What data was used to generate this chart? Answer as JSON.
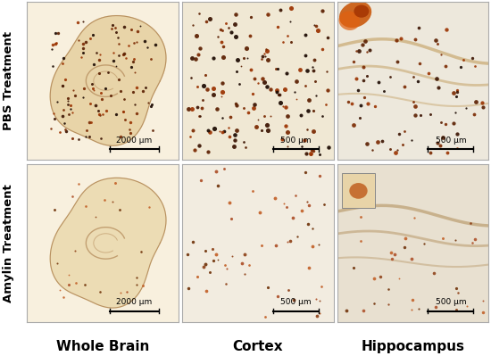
{
  "figure_bg": "#ffffff",
  "row_labels": [
    "PBS Treatment",
    "Amylin Treatment"
  ],
  "col_labels": [
    "Whole Brain",
    "Cortex",
    "Hippocampus"
  ],
  "scale_bars": [
    [
      "2000 μm",
      "500 μm",
      "500 μm"
    ],
    [
      "2000 μm",
      "500 μm",
      "500 μm"
    ]
  ],
  "label_fontsize": 11,
  "row_label_fontsize": 9.5,
  "scale_bar_fontsize": 6.5,
  "bg_whole_brain": "#f5e8d0",
  "bg_cortex_pbs": "#f0e4cc",
  "bg_cortex_amylin": "#f2e8d8",
  "bg_hippo_pbs": "#ede4d4",
  "bg_hippo_amylin": "#e8e0d0",
  "tissue_color": "#dfc49a",
  "tissue_outline": "#c8a870",
  "plaque_colors_pbs": [
    "#1a0800",
    "#3a1200",
    "#5a1e00",
    "#7a2800",
    "#9a3200"
  ],
  "plaque_colors_amylin": [
    "#6a2a00",
    "#8a3a10",
    "#aa4820",
    "#c05a20"
  ],
  "hippo_layer_color": "#c8a870",
  "orange_blob": "#c85000"
}
